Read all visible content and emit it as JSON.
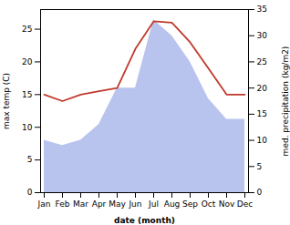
{
  "chart_data": {
    "type": "line",
    "xlabel": "date (month)",
    "ylabel": "max temp (C)",
    "y2label": "med. precipitation (kg/m2)",
    "categories": [
      "Jan",
      "Feb",
      "Mar",
      "Apr",
      "May",
      "Jun",
      "Jul",
      "Aug",
      "Sep",
      "Oct",
      "Nov",
      "Dec"
    ],
    "series": [
      {
        "type": "area",
        "axis": "y2",
        "color": "#b8c4ee",
        "values": [
          10.0,
          9.0,
          10.0,
          13.0,
          20.0,
          20.0,
          33.0,
          30.0,
          25.0,
          18.0,
          14.0,
          14.0
        ]
      },
      {
        "type": "line",
        "axis": "y",
        "color": "#c0392b",
        "values": [
          15.0,
          14.0,
          15.0,
          15.5,
          16.0,
          22.0,
          26.2,
          26.0,
          23.0,
          19.0,
          15.0,
          15.0
        ]
      }
    ],
    "ylim": [
      0,
      28
    ],
    "yticks": [
      0,
      5,
      10,
      15,
      20,
      25
    ],
    "y2lim": [
      0,
      35
    ],
    "y2ticks": [
      0,
      5,
      10,
      15,
      20,
      25,
      30,
      35
    ]
  }
}
